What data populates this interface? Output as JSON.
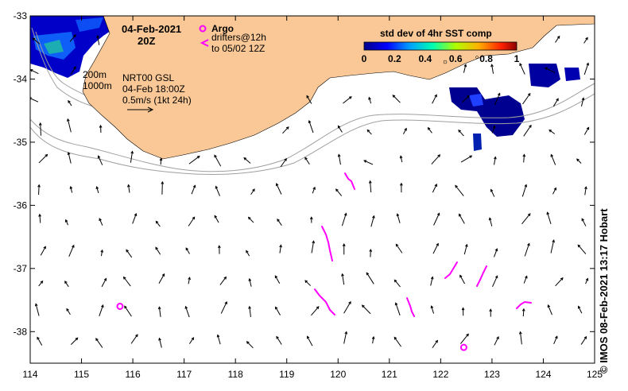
{
  "map": {
    "date_line1": "04-Feb-2021",
    "date_line2": "20Z",
    "argo_label": "Argo",
    "drifters_line1": "drifters@12h",
    "drifters_line2": "to 05/02 12Z",
    "contour_200": "200m",
    "contour_1000": "1000m",
    "product": "NRT00 GSL",
    "product_time": "04-Feb 18:00Z",
    "scale_label": "0.5m/s (1kt 24h)",
    "colorbar_title": "std dev of 4hr SST comp",
    "colorbar_ticks": [
      "0",
      "0.2",
      "0.4",
      "0.6",
      "0.8",
      "1"
    ],
    "credit": "© IMOS 08-Feb-2021 13:17 Hobart",
    "lon_ticks": [
      "114",
      "115",
      "116",
      "117",
      "118",
      "119",
      "120",
      "121",
      "122",
      "123",
      "124",
      "125"
    ],
    "lat_ticks": [
      "-33",
      "-34",
      "-35",
      "-36",
      "-37",
      "-38"
    ],
    "colors": {
      "land": "#f9c896",
      "argo": "#ff00ff",
      "drifter": "#ff00ff",
      "sst_low": "#00008b",
      "sst_high": "#8b0000",
      "contour": "#a0a0a0"
    },
    "argo_floats": [
      {
        "lon": 115.75,
        "lat": -37.6
      },
      {
        "lon": 122.45,
        "lat": -38.25
      }
    ],
    "axis": {
      "lon_range": [
        114,
        125
      ],
      "lat_range": [
        -38.5,
        -33
      ]
    }
  }
}
